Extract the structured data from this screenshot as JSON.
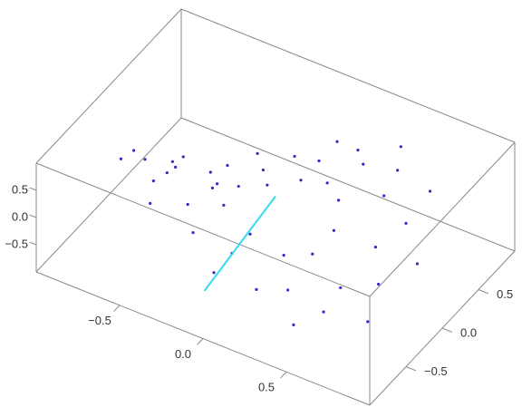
{
  "chart_data": {
    "type": "scatter3d",
    "xlim": [
      -1,
      1
    ],
    "ylim": [
      -1,
      1
    ],
    "zlim": [
      -1,
      1
    ],
    "xticks": [
      {
        "value": -0.5,
        "label": "−0.5"
      },
      {
        "value": 0,
        "label": "0.0"
      },
      0.5
    ],
    "yticks": [
      {
        "value": -0.5,
        "label": "−0.5"
      },
      {
        "value": 0,
        "label": "0.0"
      },
      0.5
    ],
    "zticks": [
      {
        "value": -0.5,
        "label": "−0.5"
      },
      {
        "value": 0,
        "label": "0.0"
      },
      0.5
    ],
    "series": [
      {
        "mode": "points",
        "color": "#3f22c8",
        "x": [
          0.35,
          0.3,
          0.18,
          0,
          -0.18,
          -0.3,
          -0.35,
          -0.3,
          -0.18,
          0,
          0.18,
          0.3,
          0.6,
          0.52,
          0.3,
          0,
          -0.3,
          -0.52,
          -0.6,
          -0.52,
          -0.3,
          0,
          0.3,
          0.52,
          0.85,
          0.74,
          0.43,
          0,
          -0.43,
          -0.74,
          -0.85,
          -0.74,
          -0.43,
          0,
          0.43,
          0.74,
          0.7,
          0.51,
          0.19,
          -0.19,
          -0.51,
          -0.7,
          -0.7,
          -0.51,
          -0.19,
          0.19,
          0.51,
          0.7
        ],
        "y": [
          0,
          0.18,
          0.3,
          0.35,
          0.3,
          0.18,
          0,
          -0.18,
          -0.3,
          -0.35,
          -0.3,
          -0.18,
          0,
          0.3,
          0.52,
          0.6,
          0.52,
          0.3,
          0,
          -0.3,
          -0.52,
          -0.6,
          -0.52,
          -0.3,
          0,
          0.43,
          0.74,
          0.85,
          0.74,
          0.43,
          0,
          -0.43,
          -0.74,
          -0.85,
          -0.74,
          -0.43,
          0.19,
          0.51,
          0.7,
          0.7,
          0.51,
          0.19,
          -0.19,
          -0.51,
          -0.7,
          -0.7,
          -0.51,
          -0.19
        ],
        "z": [
          0,
          0.24,
          0.24,
          0,
          -0.24,
          -0.24,
          0,
          0.24,
          0.24,
          0,
          -0.24,
          -0.24,
          0,
          0.42,
          0.42,
          0,
          -0.42,
          -0.42,
          0,
          0.42,
          0.42,
          0,
          -0.42,
          -0.42,
          0,
          0.59,
          0.59,
          0,
          -0.59,
          -0.59,
          0,
          0.59,
          0.59,
          0,
          -0.59,
          -0.59,
          0.29,
          0.58,
          0.29,
          -0.29,
          -0.58,
          -0.29,
          0.29,
          0.58,
          0.29,
          -0.29,
          -0.58,
          -0.29
        ]
      },
      {
        "mode": "line",
        "color": "#33dced",
        "x": [
          -0.1,
          -0.05,
          0
        ],
        "y": [
          -0.75,
          -0.38,
          0
        ],
        "z": [
          -0.6,
          -0.2,
          0.2
        ]
      }
    ]
  }
}
